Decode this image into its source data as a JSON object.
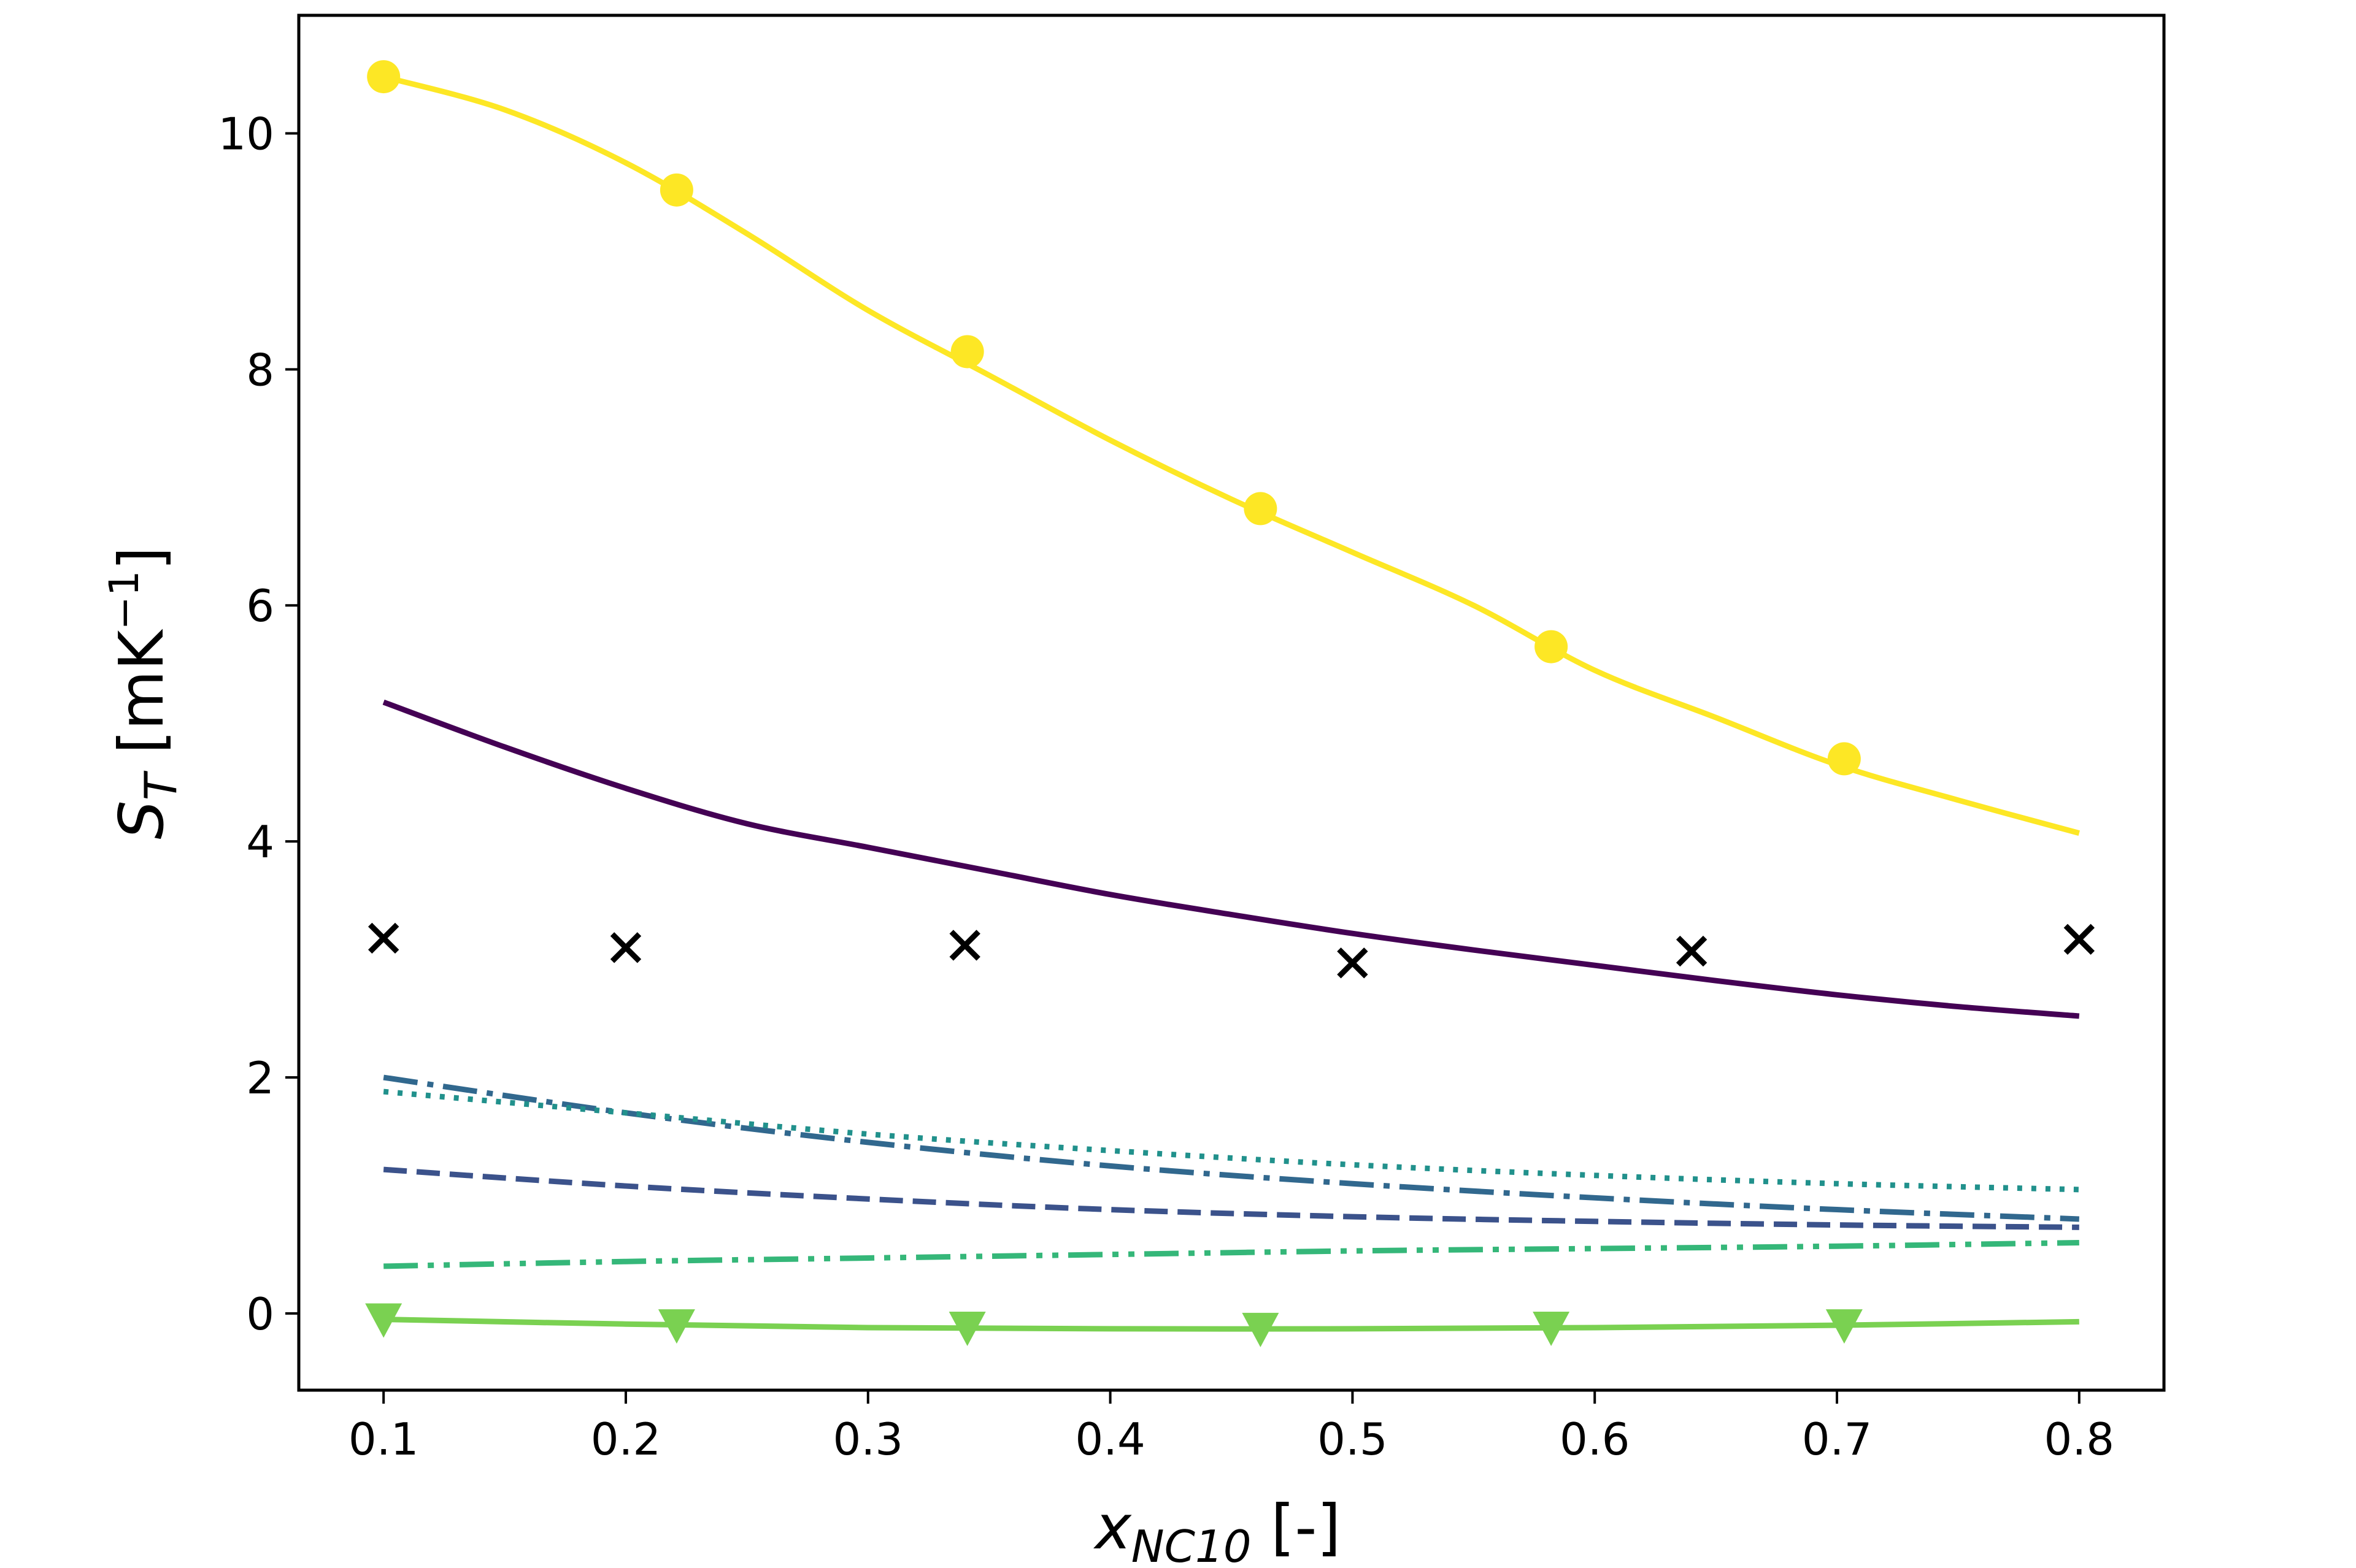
{
  "chart_data": {
    "type": "line",
    "xlabel": {
      "symbol": "x",
      "subscript": "NC10",
      "unit": " [-]"
    },
    "ylabel": {
      "symbol": "S",
      "subscript": "T",
      "unit": " [mK",
      "exponent": "−1",
      "close": "]"
    },
    "xlim": [
      0.065,
      0.835
    ],
    "ylim": [
      -0.65,
      11.0
    ],
    "xticks": [
      0.1,
      0.2,
      0.3,
      0.4,
      0.5,
      0.6,
      0.7,
      0.8
    ],
    "xtick_labels": [
      "0.1",
      "0.2",
      "0.3",
      "0.4",
      "0.5",
      "0.6",
      "0.7",
      "0.8"
    ],
    "yticks": [
      0,
      2,
      4,
      6,
      8,
      10
    ],
    "ytick_labels": [
      "0",
      "2",
      "4",
      "6",
      "8",
      "10"
    ],
    "grid": false,
    "series": [
      {
        "color": "#fde725",
        "line_style": "solid",
        "marker": "circle",
        "x": [
          0.1,
          0.15,
          0.2,
          0.25,
          0.3,
          0.35,
          0.4,
          0.45,
          0.5,
          0.55,
          0.6,
          0.65,
          0.7,
          0.75,
          0.8
        ],
        "y": [
          10.48,
          10.2,
          9.75,
          9.15,
          8.5,
          7.95,
          7.4,
          6.9,
          6.45,
          6.0,
          5.45,
          5.05,
          4.65,
          4.35,
          4.07
        ],
        "marker_x": [
          0.1,
          0.221,
          0.341,
          0.462,
          0.582,
          0.703
        ],
        "marker_y": [
          10.48,
          9.52,
          8.15,
          6.82,
          5.65,
          4.7
        ]
      },
      {
        "color": "#440154",
        "line_style": "solid",
        "marker": "none",
        "x": [
          0.1,
          0.15,
          0.2,
          0.25,
          0.3,
          0.35,
          0.4,
          0.45,
          0.5,
          0.55,
          0.6,
          0.65,
          0.7,
          0.75,
          0.8
        ],
        "y": [
          5.18,
          4.8,
          4.45,
          4.15,
          3.95,
          3.75,
          3.55,
          3.38,
          3.22,
          3.08,
          2.95,
          2.82,
          2.7,
          2.6,
          2.52
        ]
      },
      {
        "color": "#31688e",
        "line_style": "dashdot",
        "marker": "none",
        "x": [
          0.1,
          0.2,
          0.3,
          0.4,
          0.5,
          0.6,
          0.7,
          0.8
        ],
        "y": [
          2.0,
          1.7,
          1.45,
          1.25,
          1.1,
          0.98,
          0.88,
          0.8
        ]
      },
      {
        "color": "#21918c",
        "line_style": "dotted",
        "marker": "none",
        "x": [
          0.1,
          0.2,
          0.3,
          0.4,
          0.5,
          0.6,
          0.7,
          0.8
        ],
        "y": [
          1.88,
          1.7,
          1.52,
          1.38,
          1.26,
          1.17,
          1.1,
          1.05
        ]
      },
      {
        "color": "#3b528b",
        "line_style": "dashed",
        "marker": "none",
        "x": [
          0.1,
          0.2,
          0.3,
          0.4,
          0.5,
          0.6,
          0.7,
          0.8
        ],
        "y": [
          1.22,
          1.08,
          0.97,
          0.88,
          0.82,
          0.78,
          0.75,
          0.73
        ]
      },
      {
        "color": "#35b779",
        "line_style": "dashdotdot",
        "marker": "none",
        "x": [
          0.1,
          0.2,
          0.3,
          0.4,
          0.5,
          0.6,
          0.7,
          0.8
        ],
        "y": [
          0.4,
          0.44,
          0.47,
          0.5,
          0.53,
          0.55,
          0.57,
          0.6
        ]
      },
      {
        "color": "#7ad151",
        "line_style": "solid",
        "marker": "triangle-down",
        "x": [
          0.1,
          0.2,
          0.3,
          0.4,
          0.5,
          0.6,
          0.7,
          0.8
        ],
        "y": [
          -0.05,
          -0.09,
          -0.12,
          -0.13,
          -0.13,
          -0.12,
          -0.1,
          -0.07
        ],
        "marker_x": [
          0.1,
          0.221,
          0.341,
          0.462,
          0.582,
          0.703
        ],
        "marker_y": [
          -0.05,
          -0.1,
          -0.12,
          -0.13,
          -0.12,
          -0.1
        ]
      },
      {
        "color": "#000000",
        "line_style": "none",
        "marker": "x",
        "x": [
          0.1,
          0.2,
          0.34,
          0.5,
          0.64,
          0.8
        ],
        "y": [
          3.18,
          3.1,
          3.12,
          2.97,
          3.07,
          3.17
        ]
      }
    ]
  }
}
